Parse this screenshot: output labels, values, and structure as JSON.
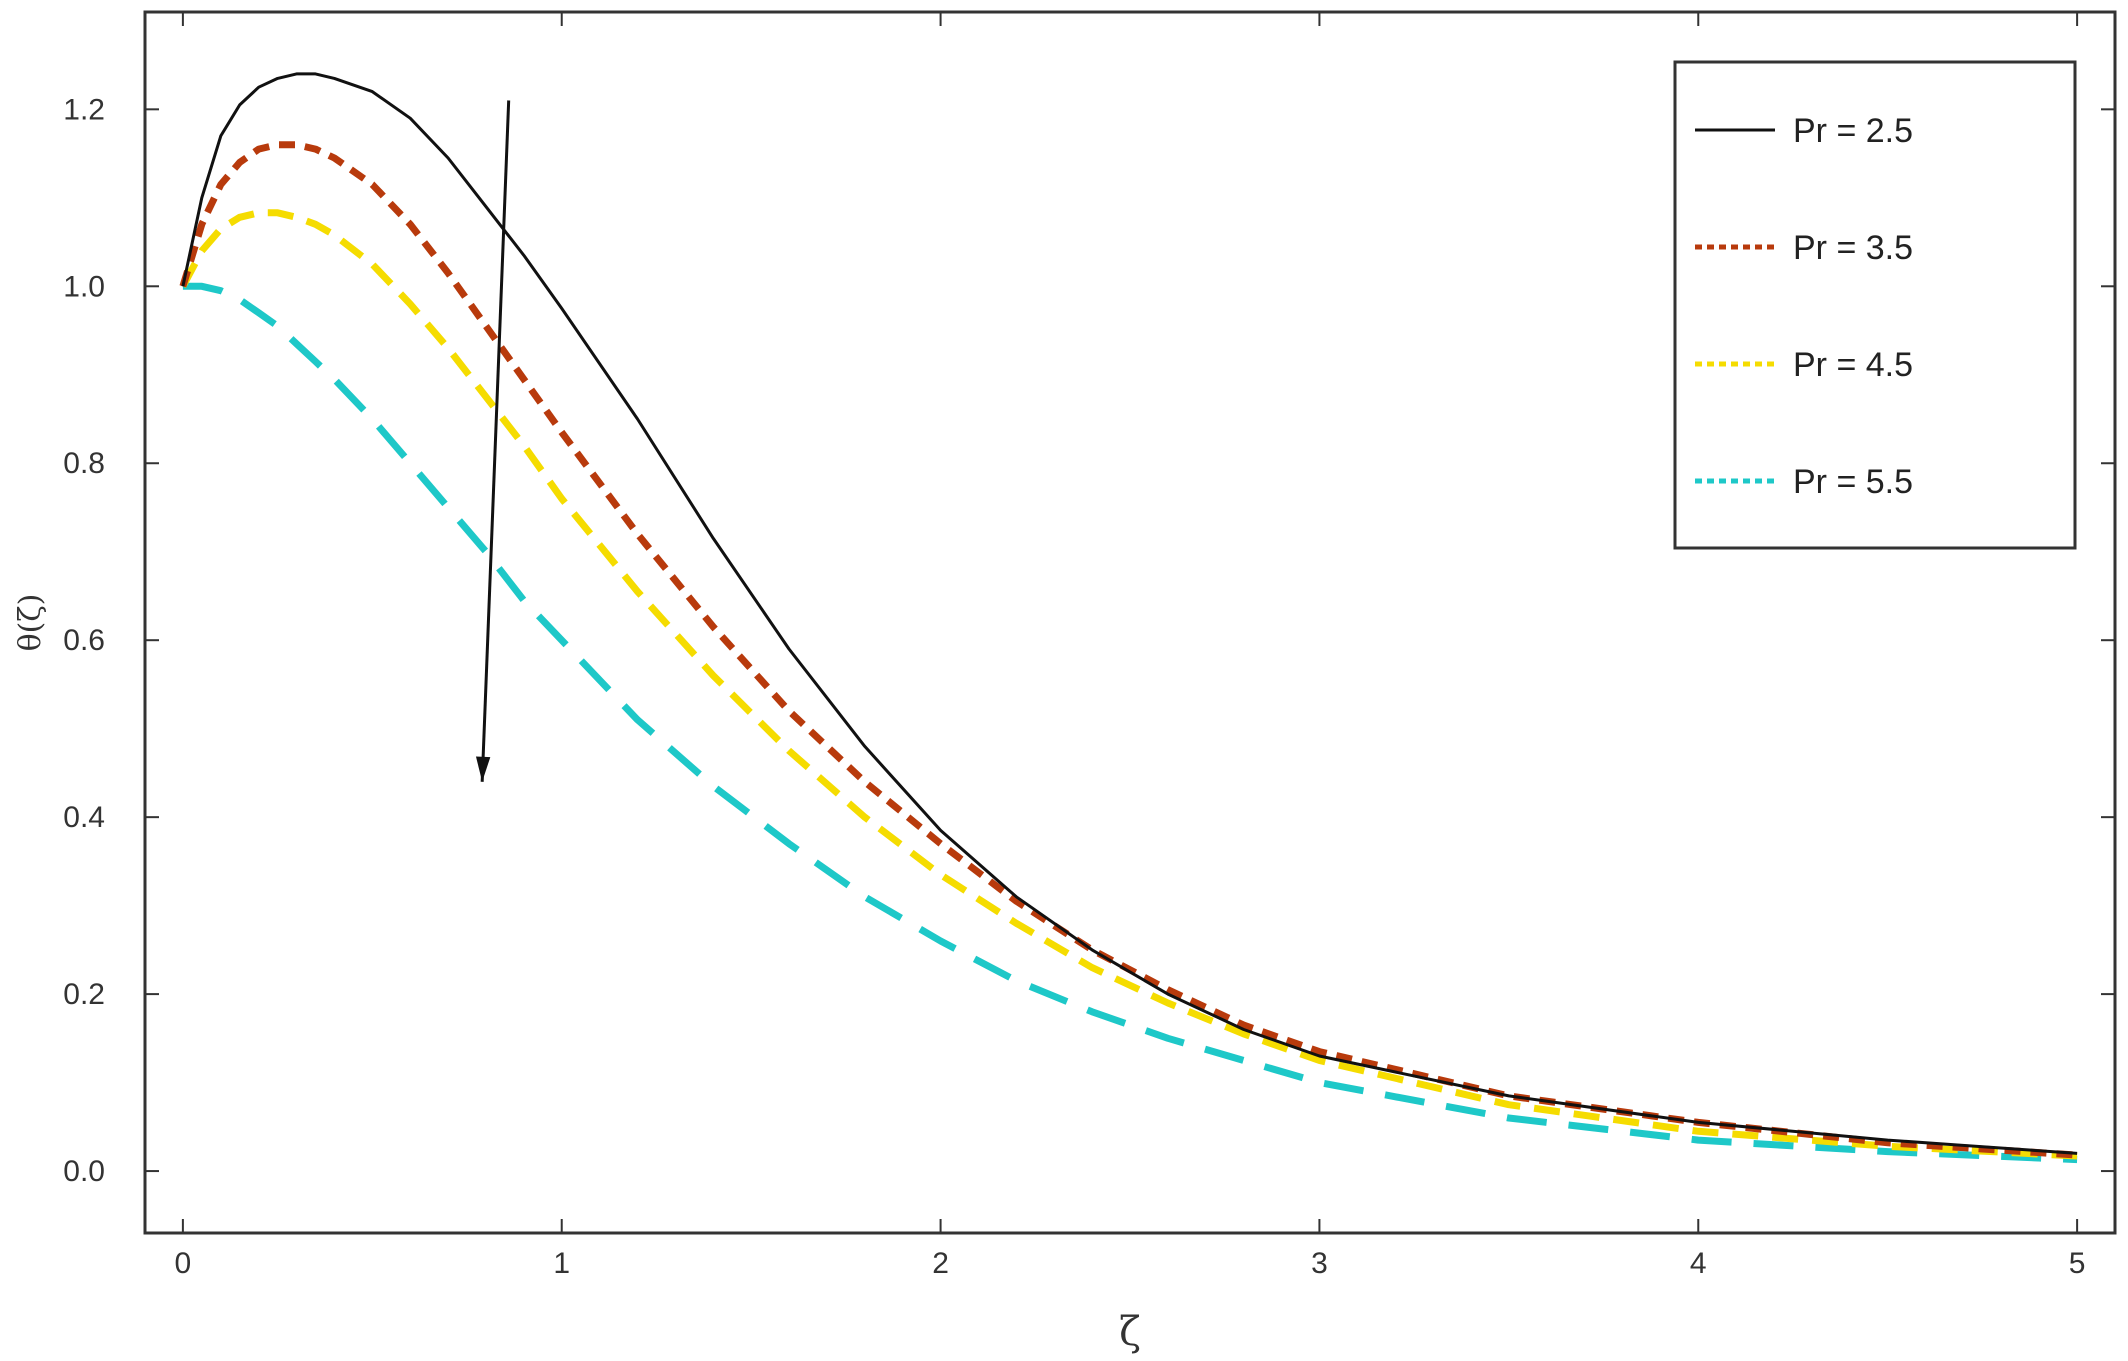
{
  "chart_data": {
    "type": "line",
    "xlabel": "ζ",
    "ylabel": "θ(ζ)",
    "xlim": [
      -0.1,
      5.1
    ],
    "ylim": [
      -0.07,
      1.31
    ],
    "xticks": [
      0,
      1,
      2,
      3,
      4,
      5
    ],
    "xtick_labels": [
      "0",
      "1",
      "2",
      "3",
      "4",
      "5"
    ],
    "yticks": [
      0.0,
      0.2,
      0.4,
      0.6,
      0.8,
      1.0,
      1.2
    ],
    "ytick_labels": [
      "0.0",
      "0.2",
      "0.4",
      "0.6",
      "0.8",
      "1.0",
      "1.2"
    ],
    "grid": false,
    "legend_position": "top-right",
    "x": [
      0,
      0.05,
      0.1,
      0.15,
      0.2,
      0.25,
      0.3,
      0.35,
      0.4,
      0.5,
      0.6,
      0.7,
      0.8,
      0.9,
      1.0,
      1.2,
      1.4,
      1.6,
      1.8,
      2.0,
      2.2,
      2.4,
      2.6,
      2.8,
      3.0,
      3.5,
      4.0,
      4.5,
      5.0
    ],
    "series": [
      {
        "name": "Pr = 2.5",
        "color": "#111111",
        "style": "solid",
        "values": [
          1.0,
          1.1,
          1.17,
          1.205,
          1.225,
          1.235,
          1.24,
          1.24,
          1.235,
          1.22,
          1.19,
          1.145,
          1.09,
          1.035,
          0.975,
          0.85,
          0.715,
          0.59,
          0.48,
          0.385,
          0.31,
          0.25,
          0.2,
          0.16,
          0.13,
          0.085,
          0.055,
          0.035,
          0.02
        ]
      },
      {
        "name": "Pr = 3.5",
        "color": "#b83a0c",
        "style": "short-dash",
        "values": [
          1.0,
          1.07,
          1.115,
          1.14,
          1.155,
          1.16,
          1.16,
          1.155,
          1.145,
          1.115,
          1.07,
          1.015,
          0.955,
          0.895,
          0.835,
          0.72,
          0.615,
          0.52,
          0.44,
          0.37,
          0.305,
          0.25,
          0.205,
          0.165,
          0.135,
          0.085,
          0.055,
          0.032,
          0.018
        ]
      },
      {
        "name": "Pr = 4.5",
        "color": "#f5dc00",
        "style": "medium-dash",
        "values": [
          1.0,
          1.04,
          1.065,
          1.078,
          1.083,
          1.083,
          1.078,
          1.07,
          1.058,
          1.025,
          0.98,
          0.93,
          0.875,
          0.82,
          0.76,
          0.655,
          0.56,
          0.475,
          0.4,
          0.335,
          0.28,
          0.23,
          0.19,
          0.155,
          0.125,
          0.075,
          0.045,
          0.028,
          0.017
        ]
      },
      {
        "name": "Pr = 5.5",
        "color": "#1ec8c8",
        "style": "long-dash",
        "values": [
          1.0,
          1.0,
          0.995,
          0.985,
          0.97,
          0.955,
          0.935,
          0.915,
          0.895,
          0.85,
          0.8,
          0.75,
          0.7,
          0.645,
          0.6,
          0.51,
          0.435,
          0.37,
          0.31,
          0.26,
          0.215,
          0.18,
          0.15,
          0.125,
          0.1,
          0.06,
          0.035,
          0.022,
          0.013
        ]
      }
    ],
    "annotations": [
      {
        "type": "arrow",
        "from": [
          0.86,
          1.21
        ],
        "to": [
          0.79,
          0.44
        ]
      }
    ]
  }
}
